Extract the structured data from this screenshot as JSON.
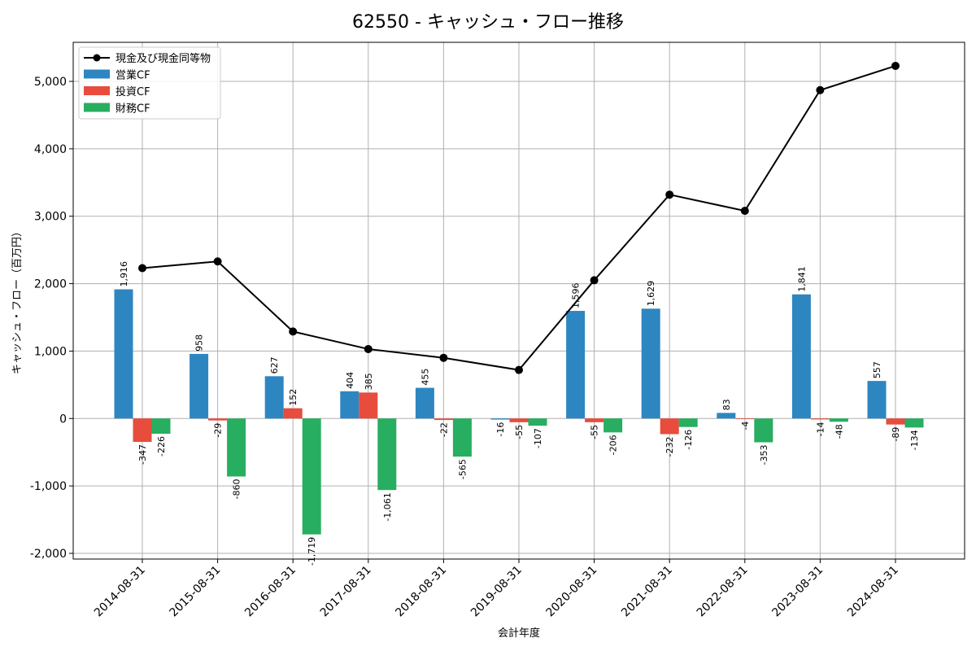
{
  "chart_data": {
    "type": "bar",
    "title": "62550 - キャッシュ・フロー推移",
    "xlabel": "会計年度",
    "ylabel": "キャッシュ・フロー（百万円）",
    "ylim": [
      -2000,
      5500
    ],
    "yticks": [
      -2000,
      -1000,
      0,
      1000,
      2000,
      3000,
      4000,
      5000
    ],
    "yticks_labels": [
      "-2,000",
      "-1,000",
      "0",
      "1,000",
      "2,000",
      "3,000",
      "4,000",
      "5,000"
    ],
    "grid": true,
    "legend_position": "top-left",
    "categories": [
      "2014-08-31",
      "2015-08-31",
      "2016-08-31",
      "2017-08-31",
      "2018-08-31",
      "2019-08-31",
      "2020-08-31",
      "2021-08-31",
      "2022-08-31",
      "2023-08-31",
      "2024-08-31"
    ],
    "series": [
      {
        "name": "営業CF",
        "kind": "bar",
        "color": "#2e86c1",
        "values": [
          1916,
          958,
          627,
          404,
          455,
          -16,
          1596,
          1629,
          83,
          1841,
          557
        ],
        "labels": [
          "1,916",
          "958",
          "627",
          "404",
          "455",
          "-16",
          "1,596",
          "1,629",
          "83",
          "1,841",
          "557"
        ]
      },
      {
        "name": "投資CF",
        "kind": "bar",
        "color": "#e74c3c",
        "values": [
          -347,
          -29,
          152,
          385,
          -22,
          -55,
          -55,
          -232,
          -4,
          -14,
          -89
        ],
        "labels": [
          "-347",
          "-29",
          "152",
          "385",
          "-22",
          "-55",
          "-55",
          "-232",
          "-4",
          "-14",
          "-89"
        ]
      },
      {
        "name": "財務CF",
        "kind": "bar",
        "color": "#27ae60",
        "values": [
          -226,
          -860,
          -1719,
          -1061,
          -565,
          -107,
          -206,
          -126,
          -353,
          -48,
          -134
        ],
        "labels": [
          "-226",
          "-860",
          "-1,719",
          "-1,061",
          "-565",
          "-107",
          "-206",
          "-126",
          "-353",
          "-48",
          "-134"
        ]
      },
      {
        "name": "現金及び現金同等物",
        "kind": "line",
        "color": "#000000",
        "values": [
          2230,
          2330,
          1290,
          1030,
          900,
          720,
          2050,
          3320,
          3080,
          4870,
          5230
        ]
      }
    ]
  }
}
